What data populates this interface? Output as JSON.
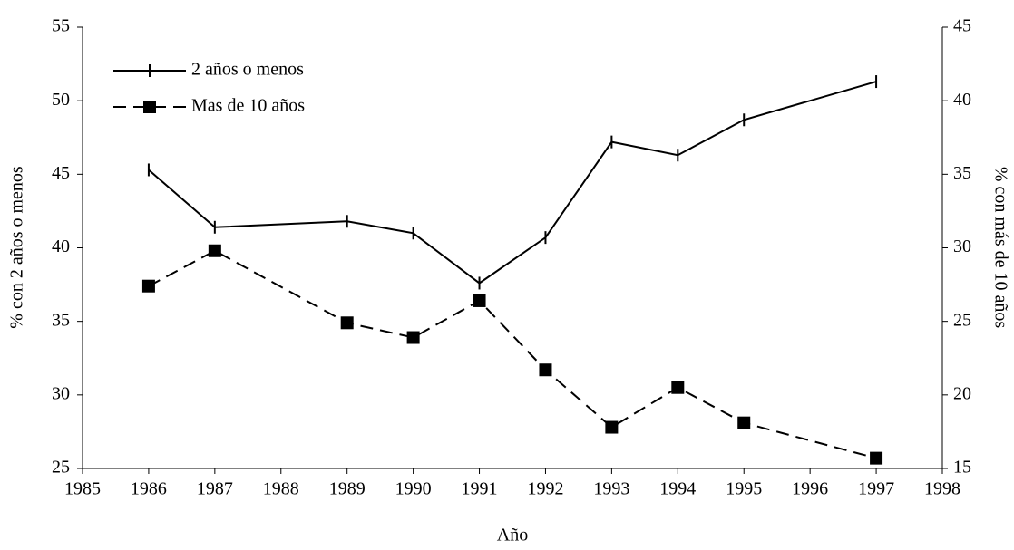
{
  "chart_data": {
    "type": "line",
    "x_label": "Año",
    "y_label": "% con 2 años o menos",
    "y2_label": "% con más de 10 años",
    "x": [
      1986,
      1987,
      1989,
      1990,
      1991,
      1992,
      1993,
      1994,
      1995,
      1997
    ],
    "series": [
      {
        "name": "2 años o menos",
        "color": "#000000",
        "marker": "tick",
        "dash": false,
        "values": [
          45.3,
          41.4,
          41.8,
          41.0,
          37.6,
          40.7,
          47.2,
          46.3,
          48.7,
          51.3
        ]
      },
      {
        "name": "Mas de 10 años",
        "color": "#000000",
        "marker": "square",
        "dash": true,
        "axis": "y2",
        "values": [
          27.4,
          29.8,
          24.9,
          23.9,
          26.4,
          21.7,
          17.8,
          20.5,
          18.1,
          15.7
        ]
      }
    ],
    "xlim": [
      1985,
      1998
    ],
    "xticks": [
      1985,
      1986,
      1987,
      1988,
      1989,
      1990,
      1991,
      1992,
      1993,
      1994,
      1995,
      1996,
      1997,
      1998
    ],
    "ylim": [
      25,
      55
    ],
    "yticks": [
      25,
      30,
      35,
      40,
      45,
      50,
      55
    ],
    "y2lim": [
      15,
      45
    ],
    "y2ticks": [
      15,
      20,
      25,
      30,
      35,
      40,
      45
    ],
    "legend": "top-left",
    "grid": false
  }
}
